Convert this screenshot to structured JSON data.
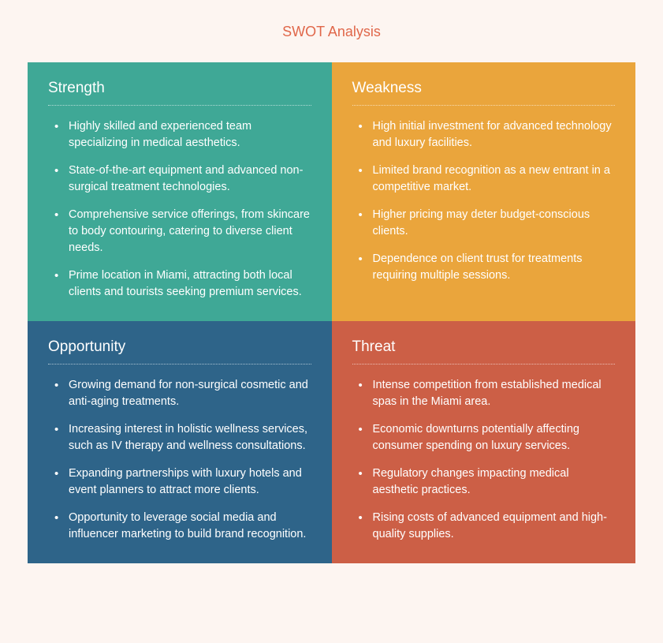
{
  "title": "SWOT Analysis",
  "title_color": "#e0674a",
  "background_color": "#fdf5f1",
  "grid": {
    "rows": 2,
    "cols": 2
  },
  "quadrants": [
    {
      "key": "strength",
      "heading": "Strength",
      "bg_color": "#3fa896",
      "text_color": "#ffffff",
      "items": [
        "Highly skilled and experienced team specializing in medical aesthetics.",
        "State-of-the-art equipment and advanced non-surgical treatment technologies.",
        "Comprehensive service offerings, from skincare to body contouring, catering to diverse client needs.",
        "Prime location in Miami, attracting both local clients and tourists seeking premium services."
      ]
    },
    {
      "key": "weakness",
      "heading": "Weakness",
      "bg_color": "#eaa53c",
      "text_color": "#ffffff",
      "items": [
        "High initial investment for advanced technology and luxury facilities.",
        "Limited brand recognition as a new entrant in a competitive market.",
        "Higher pricing may deter budget-conscious clients.",
        "Dependence on client trust for treatments requiring multiple sessions."
      ]
    },
    {
      "key": "opportunity",
      "heading": "Opportunity",
      "bg_color": "#2e6489",
      "text_color": "#ffffff",
      "items": [
        "Growing demand for non-surgical cosmetic and anti-aging treatments.",
        "Increasing interest in holistic wellness services, such as IV therapy and wellness consultations.",
        "Expanding partnerships with luxury hotels and event planners to attract more clients.",
        "Opportunity to leverage social media and influencer marketing to build brand recognition."
      ]
    },
    {
      "key": "threat",
      "heading": "Threat",
      "bg_color": "#cc5f46",
      "text_color": "#ffffff",
      "items": [
        "Intense competition from established medical spas in the Miami area.",
        "Economic downturns potentially affecting consumer spending on luxury services.",
        "Regulatory changes impacting medical aesthetic practices.",
        "Rising costs of advanced equipment and high-quality supplies."
      ]
    }
  ],
  "typography": {
    "title_fontsize": 18,
    "heading_fontsize": 19,
    "body_fontsize": 14.5,
    "heading_weight": 400,
    "body_weight": 400
  },
  "divider": {
    "style": "dotted",
    "color": "rgba(255,255,255,0.6)"
  }
}
